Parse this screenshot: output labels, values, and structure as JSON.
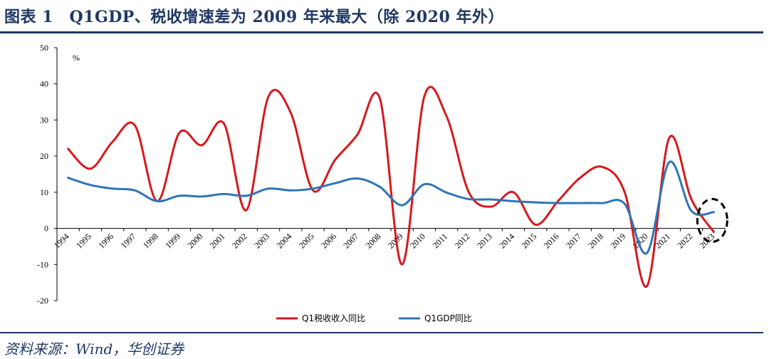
{
  "figure": {
    "title": "图表 1　Q1GDP、税收增速差为 2009 年来最大（除 2020 年外）",
    "source": "资料来源：Wind，华创证券"
  },
  "chart_data": {
    "type": "line",
    "unit_label": "%",
    "x": [
      "1994",
      "1995",
      "1996",
      "1997",
      "1998",
      "1999",
      "2000",
      "2001",
      "2002",
      "2003",
      "2004",
      "2005",
      "2006",
      "2007",
      "2008",
      "2009",
      "2010",
      "2011",
      "2012",
      "2013",
      "2014",
      "2015",
      "2016",
      "2017",
      "2018",
      "2019",
      "2020",
      "2021",
      "2022",
      "2023"
    ],
    "ylim": [
      -20,
      50
    ],
    "yticks": [
      -20,
      -10,
      0,
      10,
      20,
      30,
      40,
      50
    ],
    "grid": false,
    "legend_position": "bottom-center",
    "series": [
      {
        "name": "Q1税收收入同比",
        "color": "#d7191c",
        "values": [
          22,
          16.5,
          24,
          28.5,
          7.5,
          26.5,
          23,
          29,
          5,
          36.5,
          32,
          10.5,
          19,
          26,
          36,
          -10,
          36.5,
          31,
          10,
          6,
          10,
          1,
          7.5,
          14,
          17,
          10,
          -16,
          25,
          8,
          -1
        ]
      },
      {
        "name": "Q1GDP同比",
        "color": "#2e75b6",
        "values": [
          14,
          12,
          11,
          10.5,
          7.5,
          9,
          8.8,
          9.5,
          9,
          11,
          10.5,
          11,
          12.5,
          13.8,
          11.5,
          6.4,
          12.2,
          9.9,
          8.1,
          8,
          7.5,
          7.2,
          7,
          7,
          7,
          6.8,
          -6.8,
          18.3,
          4.8,
          4.5
        ]
      }
    ],
    "annotations": [
      {
        "type": "dashed-ellipse",
        "target_x": "2023"
      }
    ]
  }
}
